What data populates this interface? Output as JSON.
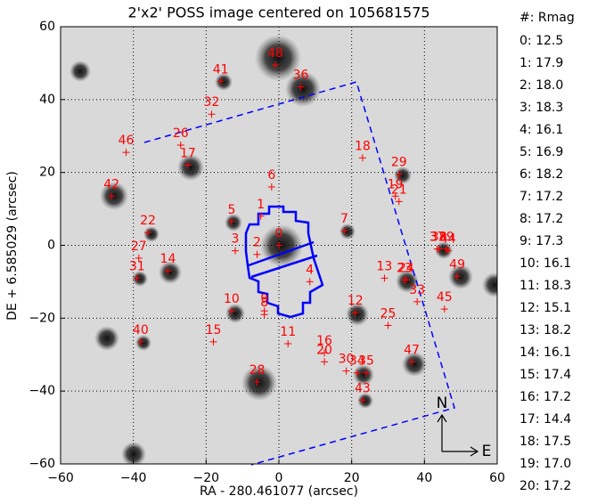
{
  "chart_data": {
    "type": "scatter",
    "title": "2'x2' POSS image centered on 105681575",
    "xlabel": "RA - 280.461077 (arcsec)",
    "ylabel": "DE + 6.585029 (arcsec)",
    "xlim": [
      -60,
      60
    ],
    "ylim": [
      -60,
      60
    ],
    "xticks": [
      {
        "value": -60,
        "label": "−60"
      },
      {
        "value": -40,
        "label": "−40"
      },
      {
        "value": -20,
        "label": "−20"
      },
      0,
      20,
      40,
      60
    ],
    "yticks": [
      {
        "value": -60,
        "label": "−60"
      },
      {
        "value": -40,
        "label": "−40"
      },
      {
        "value": -20,
        "label": "−20"
      },
      0,
      20,
      40,
      60
    ],
    "grid": true,
    "color": "#ff0000",
    "labels": [
      "0",
      "1",
      "2",
      "3",
      "4",
      "5",
      "6",
      "7",
      "8",
      "9",
      "10",
      "11",
      "12",
      "13",
      "14",
      "15",
      "16",
      "17",
      "18",
      "19",
      "20",
      "21",
      "22",
      "23",
      "24",
      "25",
      "26",
      "27",
      "28",
      "29",
      "30",
      "31",
      "32",
      "33",
      "34",
      "35",
      "36",
      "37",
      "38",
      "39",
      "40",
      "41",
      "42",
      "43",
      "44",
      "45",
      "46",
      "47",
      "48",
      "49"
    ],
    "x": [
      0,
      -5,
      -6,
      -12,
      8.5,
      -13,
      -2,
      18,
      -4,
      -4,
      -13,
      2.5,
      21,
      29,
      -30.5,
      -18,
      12.5,
      -25,
      23,
      32,
      12.5,
      33,
      -36,
      34.5,
      35,
      30,
      -27,
      -38.5,
      -6,
      33,
      18.5,
      -39,
      -18.5,
      38,
      21.5,
      24,
      6,
      43.5,
      44,
      46,
      -38,
      -16,
      -46,
      23,
      46.5,
      45.5,
      -42,
      36.5,
      -1,
      49
    ],
    "y": [
      0,
      8,
      -2.5,
      -1.5,
      -10,
      6.5,
      16,
      4,
      -19,
      -18,
      -18,
      -27,
      -18.5,
      -9,
      -7,
      -26.5,
      -29.5,
      22,
      24,
      13.5,
      -32,
      12,
      3.5,
      -9.5,
      -9.5,
      -22,
      27.5,
      -3.5,
      -37.5,
      19.5,
      -34.5,
      -9,
      36,
      -15.5,
      -35,
      -35,
      43.5,
      -1,
      -1,
      -1,
      -26.5,
      45,
      13.5,
      -42.5,
      -1.5,
      -17.5,
      25.5,
      -32,
      49.5,
      -8.5
    ],
    "compass": [
      "N",
      "E"
    ],
    "list_title": "#: Rmag",
    "list": [
      "0: 12.5",
      "1: 17.9",
      "2: 18.0",
      "3: 18.3",
      "4: 16.1",
      "5: 16.9",
      "6: 18.2",
      "7: 17.2",
      "8: 17.2",
      "9: 17.3",
      "10: 16.1",
      "11: 18.3",
      "12: 15.1",
      "13: 18.2",
      "14: 16.1",
      "15: 17.4",
      "16: 17.2",
      "17: 14.4",
      "18: 17.5",
      "19: 17.0",
      "20: 17.2"
    ]
  }
}
